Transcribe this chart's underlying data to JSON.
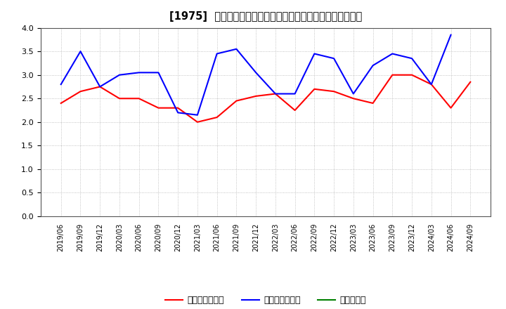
{
  "title": "[1975]  売上債権回転率、買入債務回転率、在庫回転率の推移",
  "x_labels": [
    "2019/06",
    "2019/09",
    "2019/12",
    "2020/03",
    "2020/06",
    "2020/09",
    "2020/12",
    "2021/03",
    "2021/06",
    "2021/09",
    "2021/12",
    "2022/03",
    "2022/06",
    "2022/09",
    "2022/12",
    "2023/03",
    "2023/06",
    "2023/09",
    "2023/12",
    "2024/03",
    "2024/06",
    "2024/09"
  ],
  "uriage": [
    2.4,
    2.65,
    2.75,
    2.5,
    2.5,
    2.3,
    2.3,
    2.0,
    2.1,
    2.45,
    2.55,
    2.6,
    2.25,
    2.7,
    2.65,
    2.5,
    2.4,
    3.0,
    3.0,
    2.8,
    2.3,
    2.85
  ],
  "kainyuu": [
    2.8,
    3.5,
    2.75,
    3.0,
    3.05,
    3.05,
    2.2,
    2.15,
    3.45,
    3.55,
    3.05,
    2.6,
    2.6,
    3.45,
    3.35,
    2.6,
    3.2,
    3.45,
    3.35,
    2.8,
    3.85,
    null
  ],
  "zaiko": [
    null,
    null,
    null,
    null,
    null,
    null,
    null,
    null,
    null,
    null,
    null,
    null,
    null,
    null,
    null,
    null,
    null,
    null,
    null,
    null,
    null,
    null
  ],
  "uriage_color": "#ff0000",
  "kainyuu_color": "#0000ff",
  "zaiko_color": "#008000",
  "ylim": [
    0.0,
    4.0
  ],
  "yticks": [
    0.0,
    0.5,
    1.0,
    1.5,
    2.0,
    2.5,
    3.0,
    3.5,
    4.0
  ],
  "legend_label_uriage": "売上債権回転率",
  "legend_label_kainyuu": "買入債務回転率",
  "legend_label_zaiko": "在庫回転率",
  "bg_color": "#ffffff",
  "grid_color": "#aaaaaa",
  "title_fontsize": 10.5,
  "line_width": 1.5
}
